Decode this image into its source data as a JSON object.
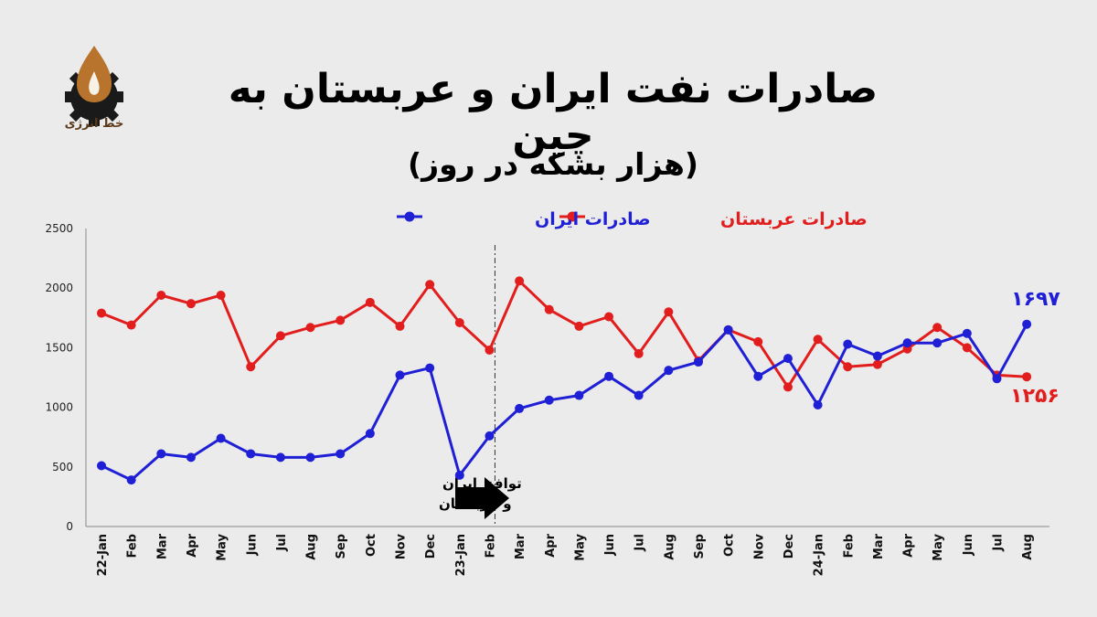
{
  "logo": {
    "text": "خط انرژی"
  },
  "header": {
    "title": "صادرات نفت ایران و عربستان به چین",
    "subtitle": "(هزار بشکه در روز)"
  },
  "colors": {
    "iran": "#1f1fd6",
    "saudi": "#e21d1d",
    "background": "#ebebeb"
  },
  "annotation": {
    "line1": "توافق ایران",
    "line2": "و عربستان",
    "icon": "arrow-right-icon"
  },
  "end_labels": {
    "iran": "۱۶۹۷",
    "saudi": "۱۲۵۶"
  },
  "chart_data": {
    "type": "line",
    "title": "صادرات نفت ایران و عربستان به چین",
    "subtitle": "(هزار بشکه در روز)",
    "categories": [
      "22-Jan",
      "Feb",
      "Mar",
      "Apr",
      "May",
      "Jun",
      "Jul",
      "Aug",
      "Sep",
      "Oct",
      "Nov",
      "Dec",
      "23-Jan",
      "Feb",
      "Mar",
      "Apr",
      "May",
      "Jun",
      "Jul",
      "Aug",
      "Sep",
      "Oct",
      "Nov",
      "Dec",
      "24-Jan",
      "Feb",
      "Mar",
      "Apr",
      "May",
      "Jun",
      "Jul",
      "Aug"
    ],
    "series": [
      {
        "name": "صادرات عربستان",
        "color": "#e21d1d",
        "values": [
          1790,
          1690,
          1940,
          1870,
          1940,
          1340,
          1600,
          1670,
          1730,
          1880,
          1680,
          2030,
          1710,
          1480,
          2060,
          1820,
          1680,
          1760,
          1450,
          1800,
          1390,
          1650,
          1550,
          1170,
          1570,
          1340,
          1360,
          1490,
          1670,
          1500,
          1270,
          1256
        ]
      },
      {
        "name": "صادرات ایران",
        "color": "#1f1fd6",
        "values": [
          510,
          390,
          610,
          580,
          740,
          610,
          580,
          580,
          610,
          780,
          1270,
          1330,
          430,
          760,
          990,
          1060,
          1100,
          1260,
          1100,
          1310,
          1380,
          1650,
          1260,
          1410,
          1020,
          1530,
          1430,
          1540,
          1540,
          1620,
          1240,
          1697
        ]
      }
    ],
    "ylim": [
      0,
      2500
    ],
    "yticks": [
      0,
      500,
      1000,
      1500,
      2000,
      2500
    ],
    "marker_category": "Feb",
    "grid": false,
    "legend": "top"
  }
}
